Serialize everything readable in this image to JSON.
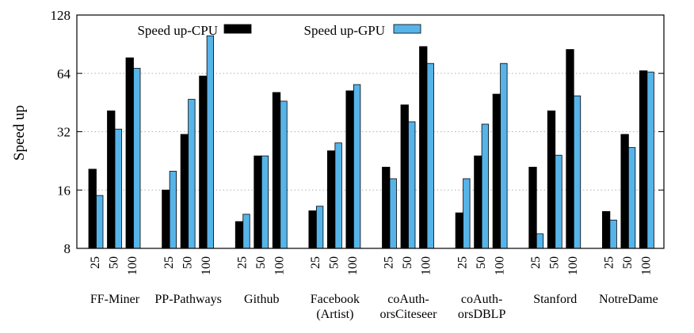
{
  "chart_data": {
    "type": "bar",
    "ylabel": "Speed up",
    "yscale": "log2",
    "ylim": [
      8,
      128
    ],
    "yticks": [
      "8",
      "16",
      "32",
      "64",
      "128"
    ],
    "grid": "horizontal dotted",
    "legend_position": "top-left",
    "series": [
      {
        "name": "Speed up-CPU",
        "color": "#000000"
      },
      {
        "name": "Speed up-GPU",
        "color": "#56b4e9"
      }
    ],
    "bar_sublabels": [
      "25",
      "50",
      "100"
    ],
    "datasets": [
      {
        "label": [
          "FF-Miner"
        ],
        "cpu": [
          20.5,
          41,
          77
        ],
        "gpu": [
          15,
          33,
          68
        ]
      },
      {
        "label": [
          "PP-Pathways"
        ],
        "cpu": [
          16,
          31,
          62
        ],
        "gpu": [
          20,
          47,
          100
        ]
      },
      {
        "label": [
          "Github"
        ],
        "cpu": [
          11,
          24,
          51
        ],
        "gpu": [
          12,
          24,
          46
        ]
      },
      {
        "label": [
          "Facebook",
          "(Artist)"
        ],
        "cpu": [
          12.5,
          25.5,
          52
        ],
        "gpu": [
          13.2,
          28,
          56
        ]
      },
      {
        "label": [
          "coAuth-",
          "orsCiteseer"
        ],
        "cpu": [
          21,
          44,
          88
        ],
        "gpu": [
          18.3,
          36,
          72
        ]
      },
      {
        "label": [
          "coAuth-",
          "orsDBLP"
        ],
        "cpu": [
          12.2,
          24,
          50
        ],
        "gpu": [
          18.3,
          35,
          72
        ]
      },
      {
        "label": [
          "Stanford"
        ],
        "cpu": [
          21,
          41,
          85
        ],
        "gpu": [
          9.5,
          24.2,
          49
        ]
      },
      {
        "label": [
          "NotreDame"
        ],
        "cpu": [
          12.4,
          31,
          66
        ],
        "gpu": [
          11.2,
          26.5,
          65
        ]
      }
    ]
  }
}
